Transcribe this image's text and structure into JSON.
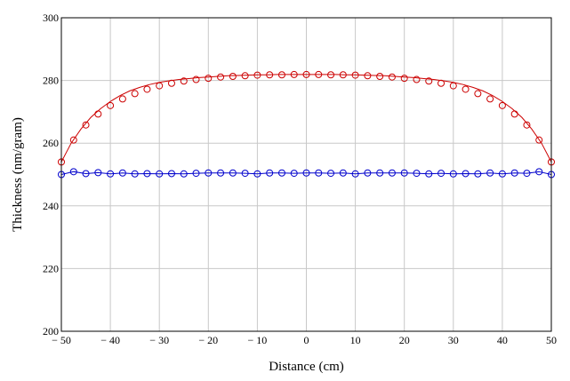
{
  "chart_data": {
    "type": "line",
    "xlabel": "Distance (cm)",
    "ylabel": "Thickness (nm/gram)",
    "xlim": [
      -50,
      50
    ],
    "ylim": [
      200,
      300
    ],
    "x_ticks": [
      -50,
      -40,
      -30,
      -20,
      -10,
      0,
      10,
      20,
      30,
      40,
      50
    ],
    "x_tick_labels": [
      "− 50",
      "− 40",
      "− 30",
      "− 20",
      "− 10",
      "0",
      "10",
      "20",
      "30",
      "40",
      "50"
    ],
    "y_ticks": [
      200,
      220,
      240,
      260,
      280,
      300
    ],
    "y_tick_labels": [
      "200",
      "220",
      "240",
      "260",
      "280",
      "300"
    ],
    "grid": true,
    "series": [
      {
        "color": "#cc0000",
        "marker": "circle",
        "line_x": [
          -50,
          -48,
          -46,
          -44,
          -42,
          -40,
          -38,
          -36,
          -34,
          -32,
          -30,
          -28,
          -26,
          -24,
          -22,
          -20,
          -18,
          -16,
          -14,
          -12,
          -10,
          -8,
          -6,
          -4,
          -2,
          0,
          2,
          4,
          6,
          8,
          10,
          12,
          14,
          16,
          18,
          20,
          22,
          24,
          26,
          28,
          30,
          32,
          34,
          36,
          38,
          40,
          42,
          44,
          46,
          48,
          50
        ],
        "line_y": [
          254.0,
          260.0,
          264.5,
          268.2,
          271.0,
          273.3,
          275.2,
          276.7,
          277.8,
          278.7,
          279.4,
          279.9,
          280.3,
          280.6,
          280.9,
          281.1,
          281.3,
          281.5,
          281.6,
          281.7,
          281.8,
          281.8,
          281.9,
          281.9,
          281.9,
          281.9,
          281.9,
          281.9,
          281.9,
          281.8,
          281.8,
          281.7,
          281.6,
          281.5,
          281.3,
          281.1,
          280.9,
          280.6,
          280.3,
          279.9,
          279.4,
          278.7,
          277.8,
          276.7,
          275.2,
          273.3,
          271.0,
          268.2,
          264.5,
          260.0,
          254.0
        ],
        "marker_x": [
          -50,
          -47.5,
          -45,
          -42.5,
          -40,
          -37.5,
          -35,
          -32.5,
          -30,
          -27.5,
          -25,
          -22.5,
          -20,
          -17.5,
          -15,
          -12.5,
          -10,
          -7.5,
          -5,
          -2.5,
          0,
          2.5,
          5,
          7.5,
          10,
          12.5,
          15,
          17.5,
          20,
          22.5,
          25,
          27.5,
          30,
          32.5,
          35,
          37.5,
          40,
          42.5,
          45,
          47.5,
          50
        ],
        "marker_y": [
          254.0,
          261.0,
          265.8,
          269.3,
          272.0,
          274.1,
          275.8,
          277.2,
          278.3,
          279.1,
          279.8,
          280.3,
          280.7,
          281.1,
          281.3,
          281.5,
          281.7,
          281.8,
          281.8,
          281.9,
          281.9,
          281.9,
          281.8,
          281.8,
          281.7,
          281.5,
          281.3,
          281.1,
          280.7,
          280.3,
          279.8,
          279.1,
          278.3,
          277.2,
          275.8,
          274.1,
          272.0,
          269.3,
          265.8,
          261.0,
          254.0
        ]
      },
      {
        "color": "#0000cc",
        "marker": "circle",
        "line_x": [
          -50,
          -47.5,
          -45,
          -42.5,
          -40,
          -37.5,
          -35,
          -32.5,
          -30,
          -27.5,
          -25,
          -22.5,
          -20,
          -17.5,
          -15,
          -12.5,
          -10,
          -7.5,
          -5,
          -2.5,
          0,
          2.5,
          5,
          7.5,
          10,
          12.5,
          15,
          17.5,
          20,
          22.5,
          25,
          27.5,
          30,
          32.5,
          35,
          37.5,
          40,
          42.5,
          45,
          47.5,
          50
        ],
        "line_y": [
          250.0,
          250.9,
          250.3,
          250.6,
          250.2,
          250.5,
          250.2,
          250.3,
          250.2,
          250.3,
          250.2,
          250.4,
          250.5,
          250.5,
          250.5,
          250.4,
          250.2,
          250.5,
          250.5,
          250.4,
          250.5,
          250.5,
          250.4,
          250.5,
          250.2,
          250.5,
          250.5,
          250.5,
          250.5,
          250.4,
          250.2,
          250.4,
          250.2,
          250.3,
          250.2,
          250.5,
          250.2,
          250.5,
          250.4,
          250.9,
          250.0
        ],
        "marker_x": [
          -50,
          -47.5,
          -45,
          -42.5,
          -40,
          -37.5,
          -35,
          -32.5,
          -30,
          -27.5,
          -25,
          -22.5,
          -20,
          -17.5,
          -15,
          -12.5,
          -10,
          -7.5,
          -5,
          -2.5,
          0,
          2.5,
          5,
          7.5,
          10,
          12.5,
          15,
          17.5,
          20,
          22.5,
          25,
          27.5,
          30,
          32.5,
          35,
          37.5,
          40,
          42.5,
          45,
          47.5,
          50
        ],
        "marker_y": [
          250.0,
          250.9,
          250.3,
          250.6,
          250.2,
          250.5,
          250.2,
          250.3,
          250.2,
          250.3,
          250.2,
          250.4,
          250.5,
          250.5,
          250.5,
          250.4,
          250.2,
          250.5,
          250.5,
          250.4,
          250.5,
          250.5,
          250.4,
          250.5,
          250.2,
          250.5,
          250.5,
          250.5,
          250.5,
          250.4,
          250.2,
          250.4,
          250.2,
          250.3,
          250.2,
          250.5,
          250.2,
          250.5,
          250.4,
          250.9,
          250.0
        ]
      }
    ]
  }
}
